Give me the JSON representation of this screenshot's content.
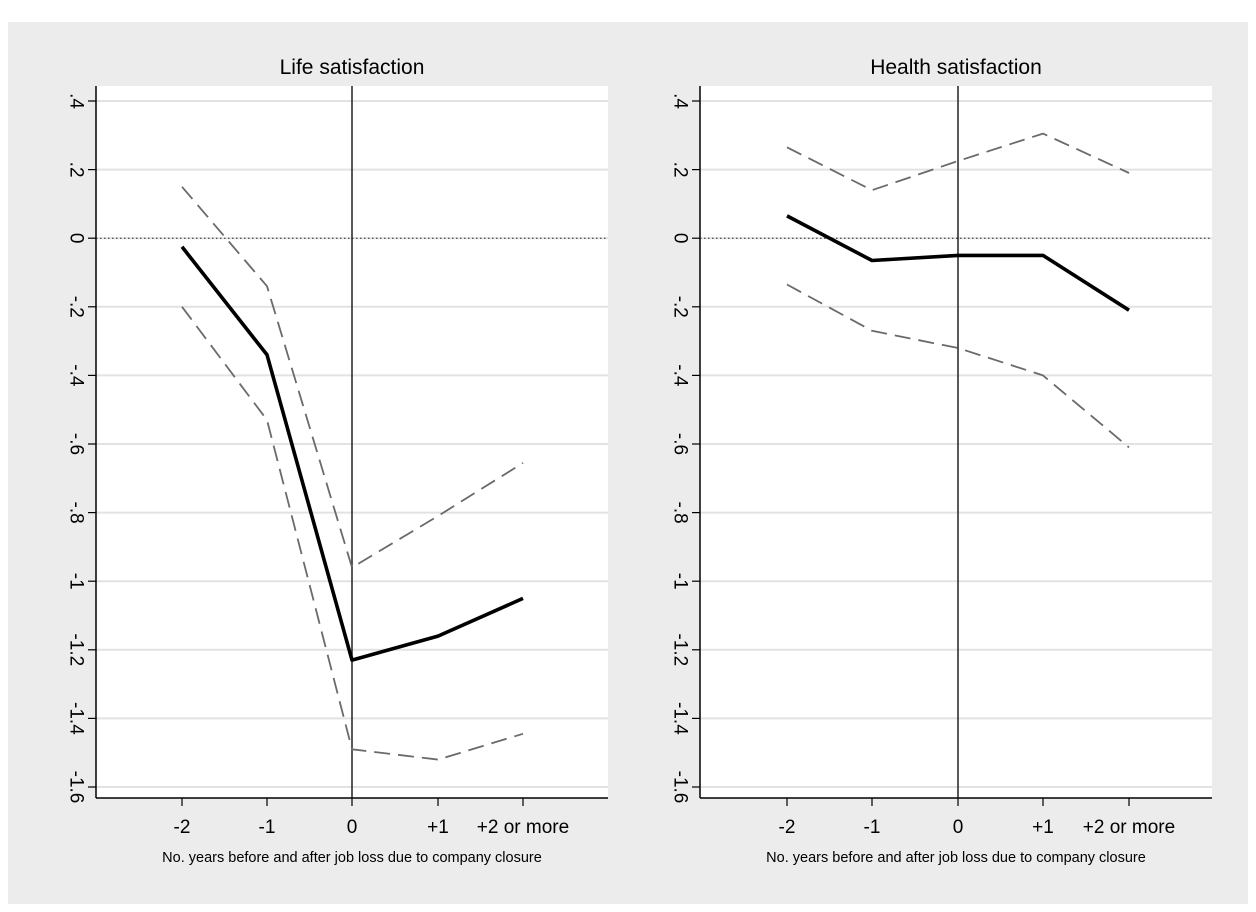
{
  "chart_data": [
    {
      "type": "line",
      "title": "Life satisfaction",
      "xlabel": "No. years before and after job loss due to company closure",
      "ylabel": "",
      "categories": [
        "-2",
        "-1",
        "0",
        "+1",
        "+2 or more"
      ],
      "ylim": [
        -1.6,
        0.4
      ],
      "yticks": [
        ".4",
        ".2",
        "0",
        "-.2",
        "-.4",
        "-.6",
        "-.8",
        "-1",
        "-1.2",
        "-1.4",
        "-1.6"
      ],
      "ytick_values": [
        0.4,
        0.2,
        0,
        -0.2,
        -0.4,
        -0.6,
        -0.8,
        -1,
        -1.2,
        -1.4,
        -1.6
      ],
      "grid": true,
      "reference_lines": {
        "horizontal_dotted_at": 0,
        "vertical_solid_at": "0"
      },
      "series": [
        {
          "role": "estimate",
          "style": "solid",
          "values": [
            -0.025,
            -0.34,
            -1.23,
            -1.16,
            -1.05
          ]
        },
        {
          "role": "upper_ci",
          "style": "dashed",
          "values": [
            0.15,
            -0.14,
            -0.96,
            -0.81,
            -0.655
          ]
        },
        {
          "role": "lower_ci",
          "style": "dashed",
          "values": [
            -0.2,
            -0.53,
            -1.49,
            -1.52,
            -1.445
          ]
        }
      ]
    },
    {
      "type": "line",
      "title": "Health satisfaction",
      "xlabel": "No. years before and after job loss due to company closure",
      "ylabel": "",
      "categories": [
        "-2",
        "-1",
        "0",
        "+1",
        "+2 or more"
      ],
      "ylim": [
        -1.6,
        0.4
      ],
      "yticks": [
        ".4",
        ".2",
        "0",
        "-.2",
        "-.4",
        "-.6",
        "-.8",
        "-1",
        "-1.2",
        "-1.4",
        "-1.6"
      ],
      "ytick_values": [
        0.4,
        0.2,
        0,
        -0.2,
        -0.4,
        -0.6,
        -0.8,
        -1,
        -1.2,
        -1.4,
        -1.6
      ],
      "grid": true,
      "reference_lines": {
        "horizontal_dotted_at": 0,
        "vertical_solid_at": "0"
      },
      "series": [
        {
          "role": "estimate",
          "style": "solid",
          "values": [
            0.065,
            -0.065,
            -0.05,
            -0.05,
            -0.21
          ]
        },
        {
          "role": "upper_ci",
          "style": "dashed",
          "values": [
            0.265,
            0.14,
            0.225,
            0.305,
            0.19
          ]
        },
        {
          "role": "lower_ci",
          "style": "dashed",
          "values": [
            -0.135,
            -0.27,
            -0.32,
            -0.4,
            -0.61
          ]
        }
      ]
    }
  ],
  "colors": {
    "background": "#ececec",
    "plot_area": "#ffffff",
    "gridline": "#e2e2e2",
    "estimate_line": "#000000",
    "ci_line": "#6a6a6a",
    "axis": "#000000"
  }
}
